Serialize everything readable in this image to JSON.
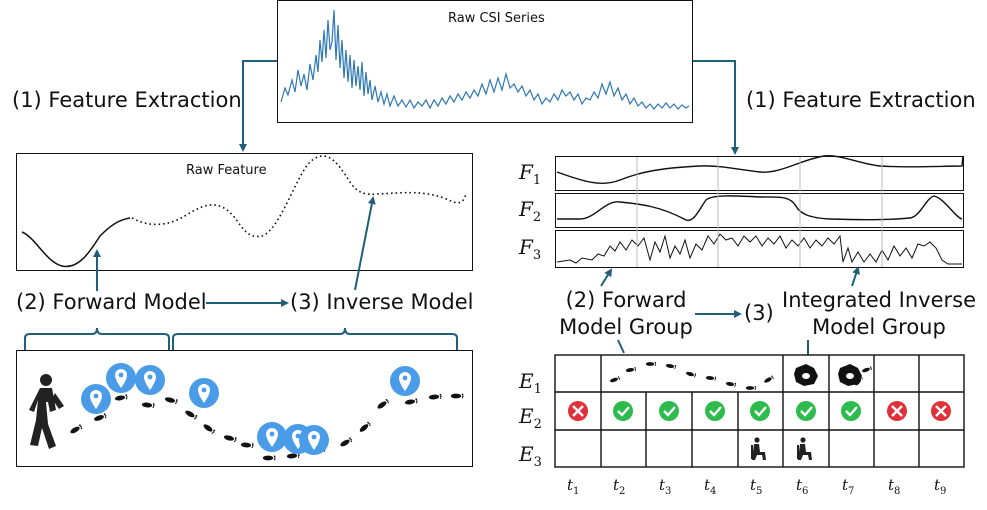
{
  "title": "Raw CSI Series",
  "left": {
    "feature_extraction": "(1) Feature Extraction",
    "raw_feature_title": "Raw Feature",
    "forward_model": "(2) Forward Model",
    "inverse_model": "(3) Inverse Model"
  },
  "right": {
    "feature_extraction": "(1) Feature Extraction",
    "feature_rows": [
      {
        "base": "F",
        "sub": "1"
      },
      {
        "base": "F",
        "sub": "2"
      },
      {
        "base": "F",
        "sub": "3"
      }
    ],
    "forward_group_line1": "(2) Forward",
    "forward_group_line2": "Model Group",
    "step3_number": "(3)",
    "inverse_group_line1": "Integrated Inverse",
    "inverse_group_line2": "Model Group",
    "event_rows": [
      {
        "base": "E",
        "sub": "1"
      },
      {
        "base": "E",
        "sub": "2"
      },
      {
        "base": "E",
        "sub": "3"
      }
    ],
    "e2_states": [
      "fail",
      "ok",
      "ok",
      "ok",
      "ok",
      "ok",
      "ok",
      "fail",
      "fail"
    ],
    "e3_states": [
      "empty",
      "empty",
      "empty",
      "empty",
      "sit",
      "sit",
      "empty",
      "empty",
      "empty"
    ],
    "time_labels": [
      {
        "base": "t",
        "sub": "1"
      },
      {
        "base": "t",
        "sub": "2"
      },
      {
        "base": "t",
        "sub": "3"
      },
      {
        "base": "t",
        "sub": "4"
      },
      {
        "base": "t",
        "sub": "5"
      },
      {
        "base": "t",
        "sub": "6"
      },
      {
        "base": "t",
        "sub": "7"
      },
      {
        "base": "t",
        "sub": "8"
      },
      {
        "base": "t",
        "sub": "9"
      }
    ]
  },
  "icons": [
    "walking-person-icon",
    "location-pin-icon",
    "footprints-icon",
    "check-icon",
    "cross-icon",
    "sitting-person-icon",
    "stationary-icon"
  ],
  "colors": {
    "signal": "#2e78b7",
    "arrow": "#1f5f7a",
    "pin": "#4a9be8",
    "check": "#2dbb4e",
    "cross": "#e0313a"
  }
}
